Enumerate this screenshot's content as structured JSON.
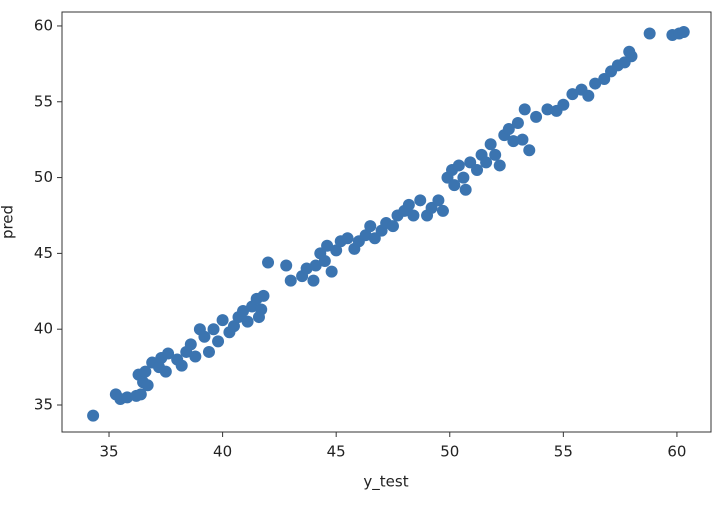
{
  "chart_data": {
    "type": "scatter",
    "x_label": "y_test",
    "y_label": "pred",
    "color": "#3b74b0",
    "xlim": [
      32.93,
      61.5
    ],
    "ylim": [
      33.22,
      60.92
    ],
    "xticks": [
      35,
      40,
      45,
      50,
      55,
      60
    ],
    "yticks": [
      35,
      40,
      45,
      50,
      55,
      60
    ],
    "x": [
      34.3,
      35.3,
      35.5,
      35.8,
      36.2,
      36.4,
      36.3,
      36.5,
      36.7,
      36.6,
      36.9,
      37.2,
      37.3,
      37.6,
      37.5,
      38.0,
      38.2,
      38.4,
      38.6,
      38.8,
      39.0,
      39.2,
      39.4,
      39.6,
      39.8,
      40.0,
      40.3,
      40.5,
      40.7,
      40.9,
      41.1,
      41.3,
      41.5,
      41.7,
      41.8,
      41.6,
      42.0,
      42.8,
      43.0,
      43.5,
      43.7,
      44.0,
      44.1,
      44.3,
      44.5,
      44.6,
      44.8,
      45.0,
      45.2,
      45.5,
      45.8,
      46.0,
      46.3,
      46.5,
      46.7,
      47.0,
      47.2,
      47.5,
      47.7,
      48.0,
      48.2,
      48.4,
      48.7,
      49.0,
      49.2,
      49.5,
      49.7,
      49.9,
      50.1,
      50.2,
      50.4,
      50.6,
      50.7,
      50.9,
      51.2,
      51.4,
      51.6,
      51.8,
      52.0,
      52.2,
      52.4,
      52.6,
      52.8,
      53.0,
      53.2,
      53.5,
      53.3,
      53.8,
      54.3,
      54.7,
      55.0,
      55.4,
      55.8,
      56.1,
      56.4,
      56.8,
      57.1,
      57.4,
      57.7,
      58.0,
      57.9,
      58.8,
      59.8,
      60.1,
      60.3
    ],
    "values": [
      34.3,
      35.7,
      35.4,
      35.5,
      35.6,
      35.7,
      37.0,
      36.5,
      36.3,
      37.2,
      37.8,
      37.5,
      38.1,
      38.4,
      37.2,
      38.0,
      37.6,
      38.5,
      39.0,
      38.2,
      40.0,
      39.5,
      38.5,
      40.0,
      39.2,
      40.6,
      39.8,
      40.2,
      40.8,
      41.2,
      40.5,
      41.5,
      42.0,
      41.3,
      42.2,
      40.8,
      44.4,
      44.2,
      43.2,
      43.5,
      44.0,
      43.2,
      44.2,
      45.0,
      44.5,
      45.5,
      43.8,
      45.2,
      45.8,
      46.0,
      45.3,
      45.8,
      46.2,
      46.8,
      46.0,
      46.5,
      47.0,
      46.8,
      47.5,
      47.8,
      48.2,
      47.5,
      48.5,
      47.5,
      48.0,
      48.5,
      47.8,
      50.0,
      50.5,
      49.5,
      50.8,
      50.0,
      49.2,
      51.0,
      50.5,
      51.5,
      51.0,
      52.2,
      51.5,
      50.8,
      52.8,
      53.2,
      52.4,
      53.6,
      52.5,
      51.8,
      54.5,
      54.0,
      54.5,
      54.4,
      54.8,
      55.5,
      55.8,
      55.4,
      56.2,
      56.5,
      57.0,
      57.4,
      57.6,
      58.0,
      58.3,
      59.5,
      59.4,
      59.5,
      59.6
    ]
  }
}
